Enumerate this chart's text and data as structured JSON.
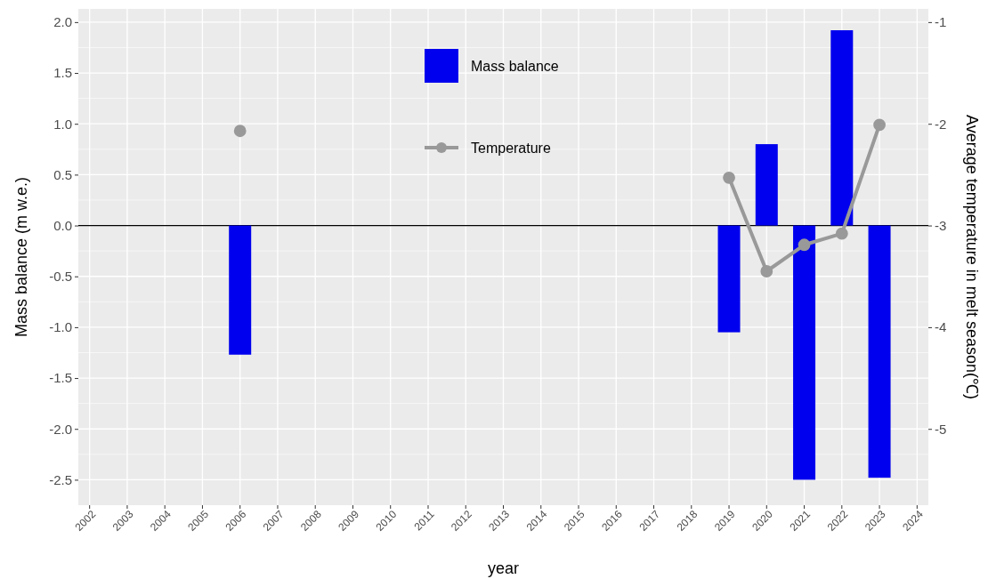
{
  "chart_data": {
    "type": "bar",
    "xlabel": "year",
    "ylabel": "Mass balance (m w.e.)",
    "y2label": "Average temperature in melt season(℃)",
    "categories": [
      "2002",
      "2003",
      "2004",
      "2005",
      "2006",
      "2007",
      "2008",
      "2009",
      "2010",
      "2011",
      "2012",
      "2013",
      "2014",
      "2015",
      "2016",
      "2017",
      "2018",
      "2019",
      "2020",
      "2021",
      "2022",
      "2023",
      "2024"
    ],
    "series": [
      {
        "name": "Mass balance",
        "color": "#0000ee",
        "values": [
          null,
          null,
          null,
          null,
          -1.27,
          null,
          null,
          null,
          null,
          null,
          null,
          null,
          null,
          null,
          null,
          null,
          null,
          -1.05,
          0.8,
          -2.5,
          1.92,
          -2.48,
          null
        ]
      },
      {
        "name": "Temperature",
        "type": "line",
        "axis": "y2",
        "color": "#999999",
        "marker": "circle",
        "line_style": "solid",
        "values": [
          null,
          null,
          null,
          null,
          -2.07,
          null,
          null,
          null,
          null,
          null,
          null,
          null,
          null,
          null,
          null,
          null,
          null,
          -2.53,
          -3.45,
          -3.19,
          -3.08,
          -2.01,
          null
        ]
      }
    ],
    "ylim": [
      -2.75,
      2.13
    ],
    "yticks": [
      {
        "value": -2.5,
        "label": "-2.5"
      },
      {
        "value": -2,
        "label": "-2.0"
      },
      {
        "value": -1.5,
        "label": "-1.5"
      },
      {
        "value": -1,
        "label": "-1.0"
      },
      {
        "value": -0.5,
        "label": "-0.5"
      },
      {
        "value": 0,
        "label": "0.0"
      },
      {
        "value": 0.5,
        "label": "0.5"
      },
      {
        "value": 1,
        "label": "1.0"
      },
      {
        "value": 1.5,
        "label": "1.5"
      },
      {
        "value": 2,
        "label": "2.0"
      }
    ],
    "y2lim": [
      -5.75,
      -0.87
    ],
    "y2ticks": [
      {
        "value": -5,
        "label": "-5"
      },
      {
        "value": -4,
        "label": "-4"
      },
      {
        "value": -3,
        "label": "-3"
      },
      {
        "value": -2,
        "label": "-2"
      },
      {
        "value": -1,
        "label": "-1"
      }
    ],
    "ref_lines": [
      {
        "axis": "y",
        "value": 0,
        "color": "#000000"
      }
    ],
    "grid": true,
    "legend": "top"
  }
}
